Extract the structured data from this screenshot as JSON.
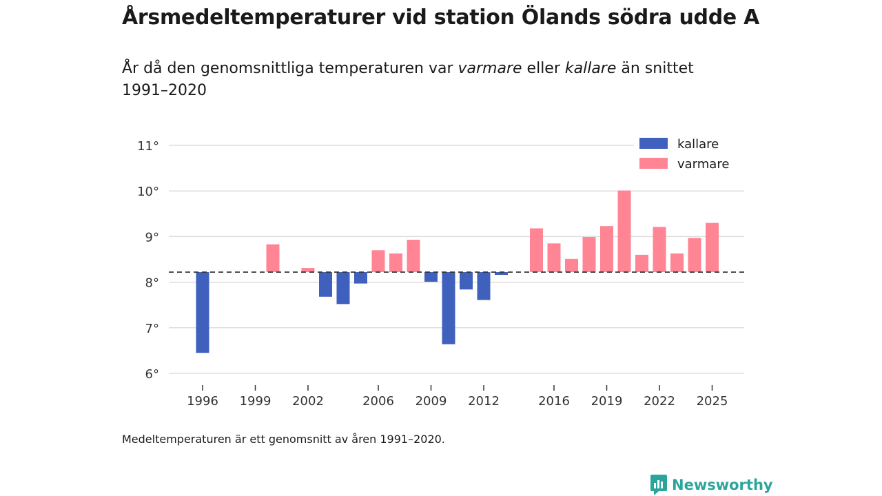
{
  "title": "Årsmedeltemperaturer vid station Ölands södra udde A",
  "subtitle": {
    "part1": "År då den genomsnittliga temperaturen var ",
    "warm_word": "varmare",
    "part2": " eller ",
    "cold_word": "kallare",
    "part3": " än snittet 1991–2020"
  },
  "footnote": "Medeltemperaturen är ett genomsnitt av åren 1991–2020.",
  "brand": {
    "name": "Newsworthy",
    "icon": "newsworthy-logo-icon"
  },
  "colors": {
    "colder": "#3f61bd",
    "warmer": "#ff8594",
    "grid": "#dddddd",
    "reference": "#333333",
    "brand": "#2ba59a"
  },
  "chart_data": {
    "type": "bar",
    "title": "Årsmedeltemperaturer vid station Ölands södra udde A",
    "xlabel": "",
    "ylabel": "",
    "reference_value": 8.22,
    "ylim": [
      5.8,
      11.1
    ],
    "y_ticks": [
      6,
      7,
      8,
      9,
      10,
      11
    ],
    "y_tick_labels": [
      "6°",
      "7°",
      "8°",
      "9°",
      "10°",
      "11°"
    ],
    "x_ticks": [
      1996,
      1999,
      2002,
      2006,
      2009,
      2012,
      2016,
      2019,
      2022,
      2025
    ],
    "x_tick_labels": [
      "1996",
      "1999",
      "2002",
      "2006",
      "2009",
      "2012",
      "2016",
      "2019",
      "2022",
      "2025"
    ],
    "legend": {
      "position": "top-right",
      "entries": [
        {
          "name": "kallare"
        },
        {
          "name": "varmare"
        }
      ]
    },
    "series": [
      {
        "name": "kallare",
        "x": [
          1996,
          2003,
          2004,
          2005,
          2009,
          2010,
          2011,
          2012,
          2013
        ],
        "values": [
          6.45,
          7.68,
          7.52,
          7.97,
          8.01,
          6.64,
          7.84,
          7.61,
          8.16
        ]
      },
      {
        "name": "varmare",
        "x": [
          2000,
          2002,
          2006,
          2007,
          2008,
          2015,
          2016,
          2017,
          2018,
          2019,
          2020,
          2021,
          2022,
          2023,
          2024,
          2025
        ],
        "values": [
          8.83,
          8.31,
          8.7,
          8.63,
          8.93,
          9.18,
          8.85,
          8.51,
          8.99,
          9.23,
          10.01,
          8.6,
          9.21,
          8.63,
          8.97,
          9.3
        ]
      }
    ]
  }
}
